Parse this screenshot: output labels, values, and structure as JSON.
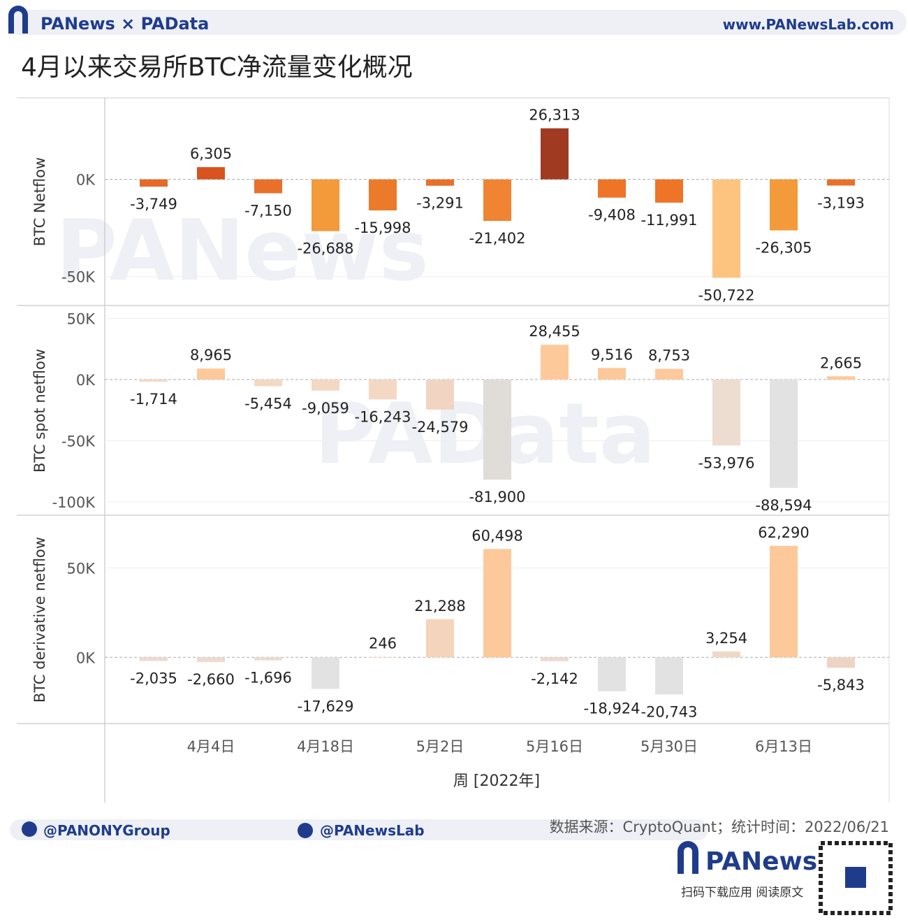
{
  "page": {
    "brand": "PANews × PAData",
    "site": "www.PANewsLab.com",
    "title": "4月以来交易所BTC净流量变化概况",
    "watermark_top": "PANews",
    "watermark_mid": "PAData",
    "twitter": "@PANONYGroup",
    "facebook": "@PANewsLab",
    "source": "数据来源：CryptoQuant；统计时间：2022/06/21",
    "logo": "PANews",
    "qr_caption": "扫码下载应用  阅读原文"
  },
  "chart_data": [
    {
      "type": "bar",
      "ylabel": "BTC Netflow",
      "values": [
        -3749,
        6305,
        -7150,
        -26688,
        -15998,
        -3291,
        -21402,
        26313,
        -9408,
        -11991,
        -50722,
        -26305,
        -3193
      ],
      "value_labels": [
        "-3,749",
        "6,305",
        "-7,150",
        "-26,688",
        "-15,998",
        "-3,291",
        "-21,402",
        "26,313",
        "-9,408",
        "-11,991",
        "-50,722",
        "-26,305",
        "-3,193"
      ],
      "colors": [
        "#e56a2a",
        "#d9531e",
        "#e8702a",
        "#f39a3a",
        "#ec7a2b",
        "#e8702a",
        "#f08432",
        "#a03b22",
        "#ee7428",
        "#ee7428",
        "#fdc47f",
        "#f39a3a",
        "#e8702a"
      ],
      "ylim": [
        -65000,
        42000
      ],
      "yticks": [
        {
          "value": 0,
          "label": "0K"
        },
        {
          "value": -50000,
          "label": "-50K"
        }
      ]
    },
    {
      "type": "bar",
      "ylabel": "BTC spot netflow",
      "values": [
        -1714,
        8965,
        -5454,
        -9059,
        -16243,
        -24579,
        -81900,
        28455,
        9516,
        8753,
        -53976,
        -88594,
        2665
      ],
      "value_labels": [
        "-1,714",
        "8,965",
        "-5,454",
        "-9,059",
        "-16,243",
        "-24,579",
        "-81,900",
        "28,455",
        "9,516",
        "8,753",
        "-53,976",
        "-88,594",
        "2,665"
      ],
      "colors": [
        "#f3d8c4",
        "#fdc99a",
        "#f3d8c4",
        "#f3d8c4",
        "#f3d8c4",
        "#f1d5c2",
        "#e0dcd8",
        "#fdc99a",
        "#fdc99a",
        "#fdc99a",
        "#eddcd0",
        "#e2e2e2",
        "#fdc99a"
      ],
      "ylim": [
        -111000,
        60000
      ],
      "yticks": [
        {
          "value": 50000,
          "label": "50K"
        },
        {
          "value": 0,
          "label": "0K"
        },
        {
          "value": -50000,
          "label": "-50K"
        },
        {
          "value": -100000,
          "label": "-100K"
        }
      ]
    },
    {
      "type": "bar",
      "ylabel": "BTC derivative netflow",
      "xlabel": "周 [2022年]",
      "categories": [
        null,
        "4月4日",
        null,
        "4月18日",
        null,
        "5月2日",
        null,
        "5月16日",
        null,
        "5月30日",
        null,
        "6月13日",
        null
      ],
      "values": [
        -2035,
        -2660,
        -1696,
        -17629,
        246,
        21288,
        60498,
        -2142,
        -18924,
        -20743,
        3254,
        62290,
        -5843
      ],
      "value_labels": [
        "-2,035",
        "-2,660",
        "-1,696",
        "-17,629",
        "246",
        "21,288",
        "60,498",
        "-2,142",
        "-18,924",
        "-20,743",
        "3,254",
        "62,290",
        "-5,843"
      ],
      "colors": [
        "#eedad0",
        "#eedad0",
        "#eedad0",
        "#e2e2e2",
        "#f1dccb",
        "#f5d4bc",
        "#fdc99a",
        "#eedad0",
        "#e2e2e2",
        "#e2e2e2",
        "#f0d8c8",
        "#fdc99a",
        "#eed4c4"
      ],
      "ylim": [
        -37000,
        79000
      ],
      "yticks": [
        {
          "value": 50000,
          "label": "50K"
        },
        {
          "value": 0,
          "label": "0K"
        }
      ]
    }
  ]
}
